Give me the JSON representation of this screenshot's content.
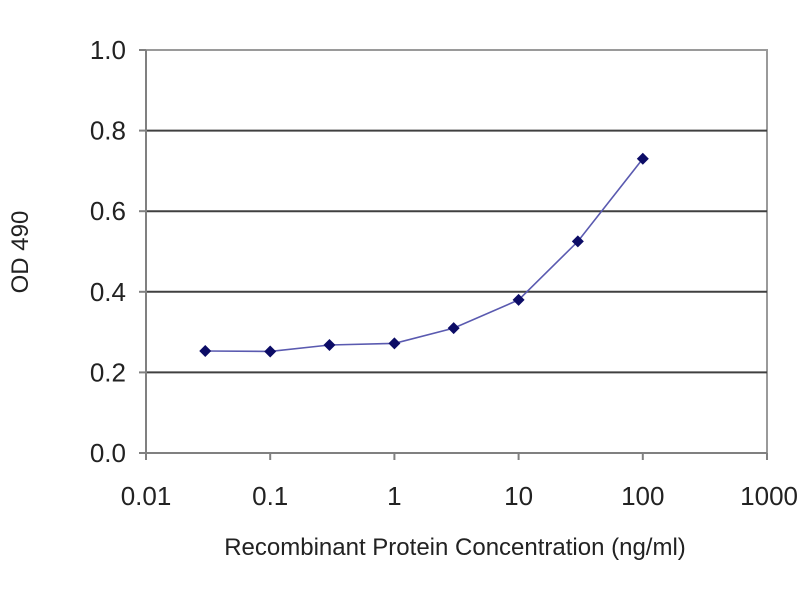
{
  "chart_data": {
    "type": "line",
    "title": "",
    "xlabel": "Recombinant Protein Concentration (ng/ml)",
    "ylabel": "OD 490",
    "xscale": "log",
    "xlim": [
      0.01,
      1000
    ],
    "ylim": [
      0.0,
      1.0
    ],
    "x_ticks": [
      "0.01",
      "0.1",
      "1",
      "10",
      "100",
      "1000"
    ],
    "y_ticks": [
      "0.0",
      "0.2",
      "0.4",
      "0.6",
      "0.8",
      "1.0"
    ],
    "grid": "horizontal",
    "legend": "none",
    "series": [
      {
        "x": [
          0.03,
          0.1,
          0.3,
          1,
          3,
          10,
          30,
          100
        ],
        "y": [
          0.253,
          0.252,
          0.268,
          0.272,
          0.31,
          0.38,
          0.525,
          0.73
        ],
        "color": "#1a1a80"
      }
    ],
    "colors": {
      "line": "#5a5ab0",
      "marker": "#0c0c66",
      "gridline": "#404040",
      "axis": "#808080"
    }
  }
}
